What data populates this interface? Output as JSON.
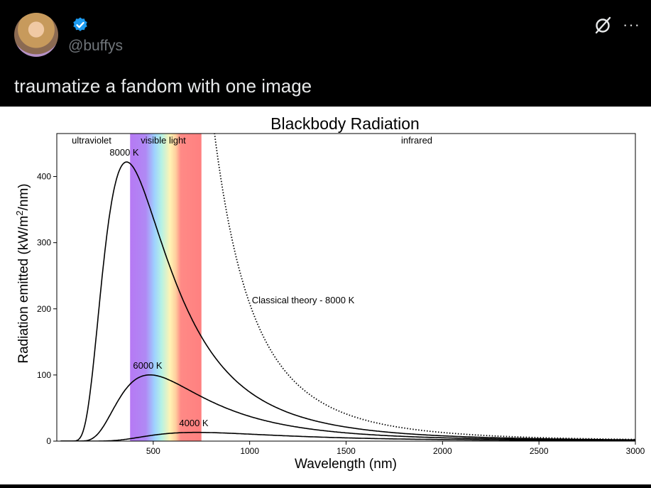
{
  "post": {
    "handle": "@buffys",
    "text": "traumatize a fandom with one image",
    "icons": {
      "verified": "verified-badge-icon",
      "grok": "grok-icon",
      "more": "more-options-icon"
    }
  },
  "chart_data": {
    "type": "line",
    "title": "Blackbody Radiation",
    "xlabel": "Wavelength (nm)",
    "ylabel": "Radiation emitted (kW/m²/nm)",
    "xlim": [
      0,
      3000
    ],
    "ylim": [
      0,
      465
    ],
    "xticks": [
      500,
      1000,
      1500,
      2000,
      2500,
      3000
    ],
    "yticks": [
      0,
      100,
      200,
      300,
      400
    ],
    "region_labels": [
      "ultraviolet",
      "visible light",
      "infrared"
    ],
    "visible_band_nm": [
      380,
      750
    ],
    "series": [
      {
        "name": "8000 K",
        "peak": [
          362,
          422
        ]
      },
      {
        "name": "6000 K",
        "peak": [
          483,
          100
        ]
      },
      {
        "name": "4000 K",
        "peak": [
          725,
          13
        ]
      },
      {
        "name": "Classical theory - 8000 K",
        "style": "dotted"
      }
    ],
    "colors": {
      "line": "#000000",
      "violet": "#b679f4",
      "blue": "#a0dcff",
      "yellow": "#fff1b4",
      "red": "#ff8080"
    }
  }
}
